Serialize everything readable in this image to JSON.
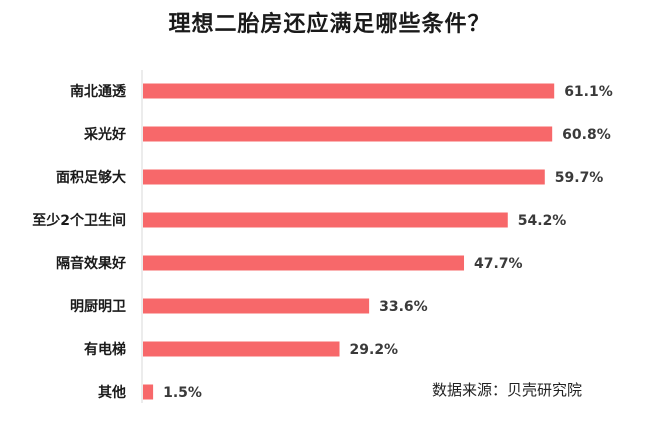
{
  "chart_data": {
    "type": "bar",
    "orientation": "horizontal",
    "title": "理想二胎房还应满足哪些条件？",
    "categories": [
      "南北通透",
      "采光好",
      "面积足够大",
      "至少2个卫生间",
      "隔音效果好",
      "明厨明卫",
      "有电梯",
      "其他"
    ],
    "values": [
      61.1,
      60.8,
      59.7,
      54.2,
      47.7,
      33.6,
      29.2,
      1.5
    ],
    "value_labels": [
      "61.1%",
      "60.8%",
      "59.7%",
      "54.2%",
      "47.7%",
      "33.6%",
      "29.2%",
      "1.5%"
    ],
    "unit": "%",
    "bar_color": "#f7686a",
    "grid": false,
    "legend": "none",
    "source": "数据来源：贝壳研究院"
  }
}
